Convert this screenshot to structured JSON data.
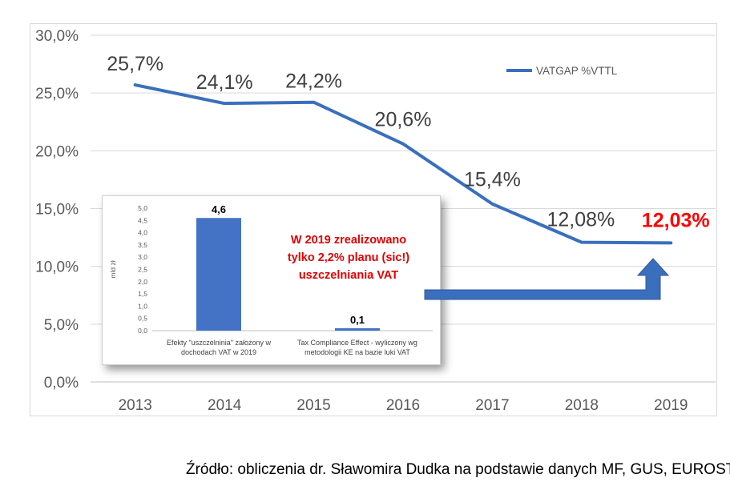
{
  "chart_data": [
    {
      "type": "line",
      "x": [
        "2013",
        "2014",
        "2015",
        "2016",
        "2017",
        "2018",
        "2019"
      ],
      "series": [
        {
          "name": "VATGAP %VTTL",
          "values": [
            25.7,
            24.1,
            24.2,
            20.6,
            15.4,
            12.08,
            12.03
          ],
          "labels": [
            "25,7%",
            "24,1%",
            "24,2%",
            "20,6%",
            "15,4%",
            "12,08%",
            "12,03%"
          ]
        }
      ],
      "y_tick_labels": [
        "0,0%",
        "5,0%",
        "10,0%",
        "15,0%",
        "20,0%",
        "25,0%",
        "30,0%"
      ],
      "ylim": [
        0,
        30
      ],
      "grid": true,
      "legend": "top-right",
      "colors": {
        "line": "#3a6fbd",
        "highlight_label": "#ff0000",
        "label": "#404040"
      }
    },
    {
      "type": "bar",
      "categories": [
        "Efekty \"uszczelninia\" założony w dochodach VAT w 2019",
        "Tax Compliance Effect - wyliczony wg metodologii KE na bazie luki VAT"
      ],
      "category_lines": [
        [
          "Efekty \"uszczelninia\" założony w",
          "dochodach VAT w 2019"
        ],
        [
          "Tax Compliance Effect - wyliczony wg",
          "metodologii KE na bazie luki VAT"
        ]
      ],
      "values": [
        4.6,
        0.1
      ],
      "value_labels": [
        "4,6",
        "0,1"
      ],
      "ylabel": "mld zł",
      "ylim": [
        0,
        5
      ],
      "y_tick_labels": [
        "0,0",
        "0,5",
        "1,0",
        "1,5",
        "2,0",
        "2,5",
        "3,0",
        "3,5",
        "4,0",
        "4,5",
        "5,0"
      ],
      "grid": false,
      "colors": {
        "bar": "#4472c4"
      }
    }
  ],
  "annotation": {
    "lines": [
      "W 2019 zrealizowano",
      "tylko 2,2% planu (sic!)",
      "uszczelniania VAT"
    ],
    "color": "#e00000"
  },
  "arrow_color": "#3a6fbd",
  "source": "Źródło: obliczenia dr. Sławomira Dudka na podstawie danych MF, GUS, EUROSTAT."
}
